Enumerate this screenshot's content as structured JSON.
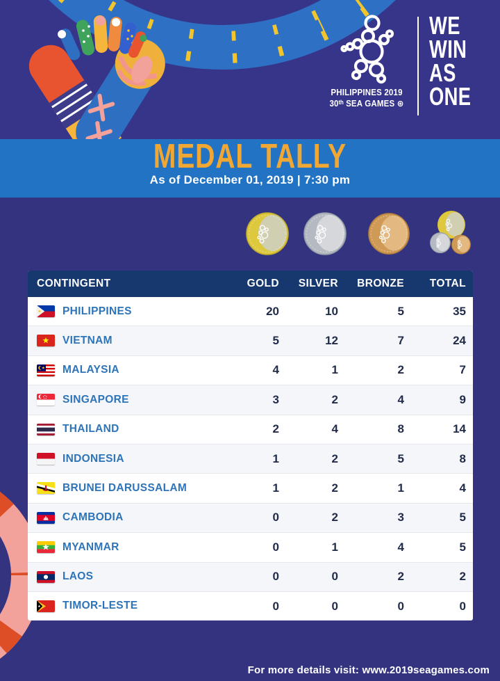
{
  "brand": {
    "logo_line1": "PHILIPPINES 2019",
    "logo_line2": "30ᵗʰ SEA GAMES ⊛",
    "tagline": [
      "WE",
      "WIN",
      "AS",
      "ONE"
    ]
  },
  "banner": {
    "title": "MEDAL TALLY",
    "subtitle": "As of December 01, 2019 | 7:30 pm"
  },
  "medals_legend": [
    "gold-medal",
    "silver-medal",
    "bronze-medal",
    "total-medals"
  ],
  "table": {
    "columns": [
      "CONTINGENT",
      "GOLD",
      "SILVER",
      "BRONZE",
      "TOTAL"
    ],
    "rows": [
      {
        "flag": "ph",
        "country": "PHILIPPINES",
        "gold": 20,
        "silver": 10,
        "bronze": 5,
        "total": 35
      },
      {
        "flag": "vn",
        "country": "VIETNAM",
        "gold": 5,
        "silver": 12,
        "bronze": 7,
        "total": 24
      },
      {
        "flag": "my",
        "country": "MALAYSIA",
        "gold": 4,
        "silver": 1,
        "bronze": 2,
        "total": 7
      },
      {
        "flag": "sg",
        "country": "SINGAPORE",
        "gold": 3,
        "silver": 2,
        "bronze": 4,
        "total": 9
      },
      {
        "flag": "th",
        "country": "THAILAND",
        "gold": 2,
        "silver": 4,
        "bronze": 8,
        "total": 14
      },
      {
        "flag": "id",
        "country": "INDONESIA",
        "gold": 1,
        "silver": 2,
        "bronze": 5,
        "total": 8
      },
      {
        "flag": "bn",
        "country": "BRUNEI DARUSSALAM",
        "gold": 1,
        "silver": 2,
        "bronze": 1,
        "total": 4
      },
      {
        "flag": "kh",
        "country": "CAMBODIA",
        "gold": 0,
        "silver": 2,
        "bronze": 3,
        "total": 5
      },
      {
        "flag": "mm",
        "country": "MYANMAR",
        "gold": 0,
        "silver": 1,
        "bronze": 4,
        "total": 5
      },
      {
        "flag": "la",
        "country": "LAOS",
        "gold": 0,
        "silver": 0,
        "bronze": 2,
        "total": 2
      },
      {
        "flag": "tl",
        "country": "TIMOR-LESTE",
        "gold": 0,
        "silver": 0,
        "bronze": 0,
        "total": 0
      }
    ]
  },
  "footer": {
    "text": "For more details visit: www.2019seagames.com"
  },
  "colors": {
    "background": "#333380",
    "banner_blue": "#2273C4",
    "title_gold": "#F0A733",
    "header_navy": "#17386F",
    "country_blue": "#2E74B8"
  },
  "chart_data": {
    "type": "table",
    "title": "MEDAL TALLY",
    "subtitle": "As of December 01, 2019 | 7:30 pm",
    "columns": [
      "CONTINGENT",
      "GOLD",
      "SILVER",
      "BRONZE",
      "TOTAL"
    ],
    "rows": [
      [
        "PHILIPPINES",
        20,
        10,
        5,
        35
      ],
      [
        "VIETNAM",
        5,
        12,
        7,
        24
      ],
      [
        "MALAYSIA",
        4,
        1,
        2,
        7
      ],
      [
        "SINGAPORE",
        3,
        2,
        4,
        9
      ],
      [
        "THAILAND",
        2,
        4,
        8,
        14
      ],
      [
        "INDONESIA",
        1,
        2,
        5,
        8
      ],
      [
        "BRUNEI DARUSSALAM",
        1,
        2,
        1,
        4
      ],
      [
        "CAMBODIA",
        0,
        2,
        3,
        5
      ],
      [
        "MYANMAR",
        0,
        1,
        4,
        5
      ],
      [
        "LAOS",
        0,
        0,
        2,
        2
      ],
      [
        "TIMOR-LESTE",
        0,
        0,
        0,
        0
      ]
    ]
  }
}
